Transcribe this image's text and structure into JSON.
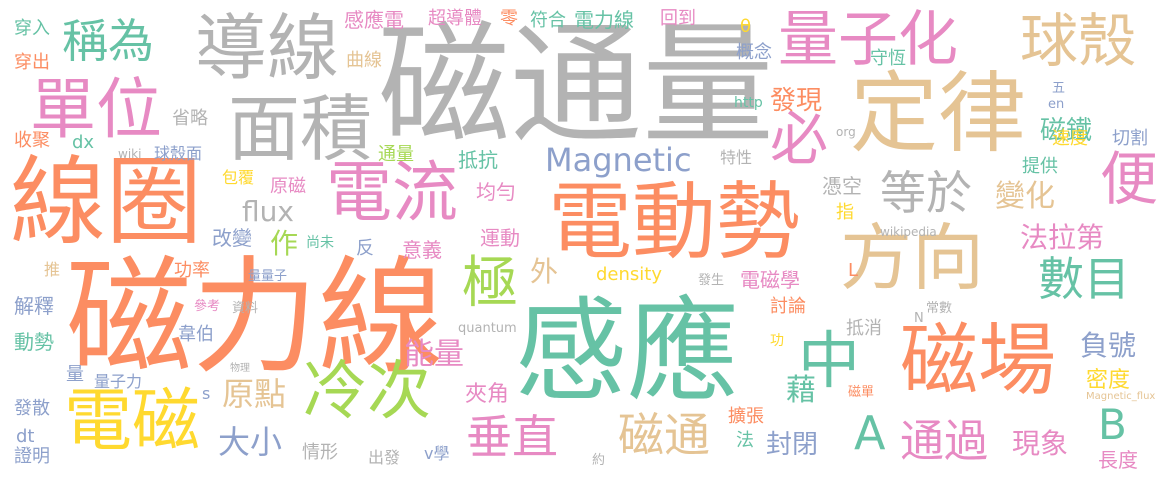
{
  "words": [
    {
      "text": "磁通量",
      "color": "#b3b3b3",
      "weight": 100
    },
    {
      "text": "磁力線",
      "color": "#fc8d62",
      "weight": 100
    },
    {
      "text": "感應",
      "color": "#66c2a5",
      "weight": 90
    },
    {
      "text": "線圈",
      "color": "#fc8d62",
      "weight": 75
    },
    {
      "text": "電動勢",
      "color": "#fc8d62",
      "weight": 72
    },
    {
      "text": "定律",
      "color": "#e5c494",
      "weight": 72
    },
    {
      "text": "導線",
      "color": "#b3b3b3",
      "weight": 58
    },
    {
      "text": "面積",
      "color": "#b3b3b3",
      "weight": 54
    },
    {
      "text": "方向",
      "color": "#e5c494",
      "weight": 58
    },
    {
      "text": "磁場",
      "color": "#fc8d62",
      "weight": 60
    },
    {
      "text": "單位",
      "color": "#e78ac3",
      "weight": 50
    },
    {
      "text": "量子化",
      "color": "#e78ac3",
      "weight": 46
    },
    {
      "text": "球殼",
      "color": "#e5c494",
      "weight": 44
    },
    {
      "text": "電流",
      "color": "#e78ac3",
      "weight": 50
    },
    {
      "text": "電磁",
      "color": "#ffd92f",
      "weight": 50
    },
    {
      "text": "冷次",
      "color": "#a6d854",
      "weight": 48
    },
    {
      "text": "中",
      "color": "#66c2a5",
      "weight": 50
    },
    {
      "text": "必",
      "color": "#e78ac3",
      "weight": 44
    },
    {
      "text": "便",
      "color": "#e78ac3",
      "weight": 44
    },
    {
      "text": "稱為",
      "color": "#66c2a5",
      "weight": 36
    },
    {
      "text": "等於",
      "color": "#b3b3b3",
      "weight": 34
    },
    {
      "text": "Magnetic",
      "color": "#8da0cb",
      "weight": 30
    },
    {
      "text": "flux",
      "color": "#b3b3b3",
      "weight": 24
    },
    {
      "text": "極",
      "color": "#a6d854",
      "weight": 44
    },
    {
      "text": "數目",
      "color": "#66c2a5",
      "weight": 34
    },
    {
      "text": "垂直",
      "color": "#e78ac3",
      "weight": 34
    },
    {
      "text": "磁通",
      "color": "#e5c494",
      "weight": 34
    },
    {
      "text": "A",
      "color": "#66c2a5",
      "weight": 34
    },
    {
      "text": "B",
      "color": "#66c2a5",
      "weight": 30
    },
    {
      "text": "通過",
      "color": "#e78ac3",
      "weight": 34
    },
    {
      "text": "法拉第",
      "color": "#e78ac3",
      "weight": 26
    },
    {
      "text": "變化",
      "color": "#e5c494",
      "weight": 26
    },
    {
      "text": "原點",
      "color": "#e5c494",
      "weight": 26
    },
    {
      "text": "大小",
      "color": "#8da0cb",
      "weight": 26
    },
    {
      "text": "能量",
      "color": "#e78ac3",
      "weight": 26
    },
    {
      "text": "負號",
      "color": "#8da0cb",
      "weight": 26
    },
    {
      "text": "現象",
      "color": "#e78ac3",
      "weight": 26
    },
    {
      "text": "藉",
      "color": "#66c2a5",
      "weight": 26
    },
    {
      "text": "封閉",
      "color": "#8da0cb",
      "weight": 22
    },
    {
      "text": "磁鐵",
      "color": "#66c2a5",
      "weight": 22
    },
    {
      "text": "發現",
      "color": "#fc8d62",
      "weight": 22
    },
    {
      "text": "外",
      "color": "#e5c494",
      "weight": 22
    },
    {
      "text": "作",
      "color": "#a6d854",
      "weight": 22
    },
    {
      "text": "密度",
      "color": "#ffd92f",
      "weight": 18
    },
    {
      "text": "長度",
      "color": "#e78ac3",
      "weight": 18
    },
    {
      "text": "夾角",
      "color": "#e78ac3",
      "weight": 18
    },
    {
      "text": "感應電",
      "color": "#e78ac3",
      "weight": 16
    },
    {
      "text": "超導體",
      "color": "#e78ac3",
      "weight": 14
    },
    {
      "text": "零",
      "color": "#fc8d62",
      "weight": 14
    },
    {
      "text": "符合",
      "color": "#66c2a5",
      "weight": 14
    },
    {
      "text": "電力線",
      "color": "#66c2a5",
      "weight": 16
    },
    {
      "text": "回到",
      "color": "#e78ac3",
      "weight": 14
    },
    {
      "text": "θ",
      "color": "#ffd92f",
      "weight": 14
    },
    {
      "text": "概念",
      "color": "#8da0cb",
      "weight": 14
    },
    {
      "text": "守恆",
      "color": "#66c2a5",
      "weight": 14
    },
    {
      "text": "五",
      "color": "#8da0cb",
      "weight": 11
    },
    {
      "text": "en",
      "color": "#8da0cb",
      "weight": 11
    },
    {
      "text": "穿入",
      "color": "#66c2a5",
      "weight": 14
    },
    {
      "text": "穿出",
      "color": "#fc8d62",
      "weight": 14
    },
    {
      "text": "曲線",
      "color": "#e5c494",
      "weight": 14
    },
    {
      "text": "省略",
      "color": "#b3b3b3",
      "weight": 14
    },
    {
      "text": "收聚",
      "color": "#fc8d62",
      "weight": 14
    },
    {
      "text": "dx",
      "color": "#66c2a5",
      "weight": 14
    },
    {
      "text": "wiki",
      "color": "#b3b3b3",
      "weight": 10
    },
    {
      "text": "球殼面",
      "color": "#8da0cb",
      "weight": 14
    },
    {
      "text": "通量",
      "color": "#a6d854",
      "weight": 14
    },
    {
      "text": "抵抗",
      "color": "#66c2a5",
      "weight": 16
    },
    {
      "text": "特性",
      "color": "#b3b3b3",
      "weight": 12
    },
    {
      "text": "http",
      "color": "#66c2a5",
      "weight": 12
    },
    {
      "text": "org",
      "color": "#b3b3b3",
      "weight": 10
    },
    {
      "text": "速度",
      "color": "#ffd92f",
      "weight": 14
    },
    {
      "text": "切割",
      "color": "#8da0cb",
      "weight": 14
    },
    {
      "text": "提供",
      "color": "#66c2a5",
      "weight": 16
    },
    {
      "text": "包覆",
      "color": "#ffd92f",
      "weight": 12
    },
    {
      "text": "原磁",
      "color": "#e78ac3",
      "weight": 14
    },
    {
      "text": "均勻",
      "color": "#e78ac3",
      "weight": 16
    },
    {
      "text": "憑空",
      "color": "#b3b3b3",
      "weight": 14
    },
    {
      "text": "指",
      "color": "#ffd92f",
      "weight": 14
    },
    {
      "text": "改變",
      "color": "#8da0cb",
      "weight": 16
    },
    {
      "text": "尚未",
      "color": "#66c2a5",
      "weight": 12
    },
    {
      "text": "反",
      "color": "#8da0cb",
      "weight": 14
    },
    {
      "text": "意義",
      "color": "#e78ac3",
      "weight": 16
    },
    {
      "text": "運動",
      "color": "#e78ac3",
      "weight": 16
    },
    {
      "text": "wikipedia",
      "color": "#b3b3b3",
      "weight": 10
    },
    {
      "text": "推",
      "color": "#e5c494",
      "weight": 14
    },
    {
      "text": "功率",
      "color": "#fc8d62",
      "weight": 14
    },
    {
      "text": "量量子",
      "color": "#8da0cb",
      "weight": 11
    },
    {
      "text": "density",
      "color": "#ffd92f",
      "weight": 14
    },
    {
      "text": "發生",
      "color": "#b3b3b3",
      "weight": 11
    },
    {
      "text": "電磁學",
      "color": "#e78ac3",
      "weight": 16
    },
    {
      "text": "L",
      "color": "#fc8d62",
      "weight": 14
    },
    {
      "text": "解釋",
      "color": "#8da0cb",
      "weight": 16
    },
    {
      "text": "參考",
      "color": "#e78ac3",
      "weight": 11
    },
    {
      "text": "資料",
      "color": "#b3b3b3",
      "weight": 11
    },
    {
      "text": "討論",
      "color": "#fc8d62",
      "weight": 14
    },
    {
      "text": "常數",
      "color": "#b3b3b3",
      "weight": 11
    },
    {
      "text": "quantum",
      "color": "#b3b3b3",
      "weight": 11
    },
    {
      "text": "抵消",
      "color": "#b3b3b3",
      "weight": 14
    },
    {
      "text": "N",
      "color": "#b3b3b3",
      "weight": 11
    },
    {
      "text": "動勢",
      "color": "#66c2a5",
      "weight": 16
    },
    {
      "text": "韋伯",
      "color": "#8da0cb",
      "weight": 14
    },
    {
      "text": "功",
      "color": "#ffd92f",
      "weight": 12
    },
    {
      "text": "物理",
      "color": "#b3b3b3",
      "weight": 8
    },
    {
      "text": "量",
      "color": "#8da0cb",
      "weight": 14
    },
    {
      "text": "量子力",
      "color": "#8da0cb",
      "weight": 12
    },
    {
      "text": "s",
      "color": "#8da0cb",
      "weight": 12
    },
    {
      "text": "發散",
      "color": "#8da0cb",
      "weight": 14
    },
    {
      "text": "磁單",
      "color": "#fc8d62",
      "weight": 11
    },
    {
      "text": "Magnetic_flux",
      "color": "#e5c494",
      "weight": 8
    },
    {
      "text": "擴張",
      "color": "#fc8d62",
      "weight": 14
    },
    {
      "text": "dt",
      "color": "#8da0cb",
      "weight": 14
    },
    {
      "text": "法",
      "color": "#66c2a5",
      "weight": 14
    },
    {
      "text": "證明",
      "color": "#8da0cb",
      "weight": 14
    },
    {
      "text": "情形",
      "color": "#b3b3b3",
      "weight": 14
    },
    {
      "text": "出發",
      "color": "#b3b3b3",
      "weight": 14
    },
    {
      "text": "v學",
      "color": "#8da0cb",
      "weight": 14
    },
    {
      "text": "約",
      "color": "#b3b3b3",
      "weight": 10
    }
  ]
}
